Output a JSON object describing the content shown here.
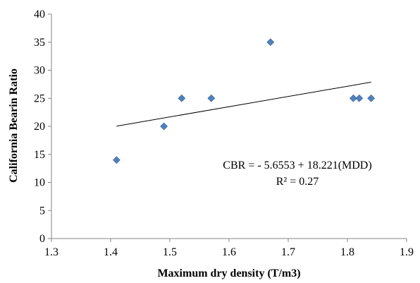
{
  "chart_data": {
    "type": "scatter",
    "title": "",
    "xlabel": "Maximum dry density (T/m3)",
    "ylabel": "California Bearin Ratio",
    "xlim": [
      1.3,
      1.9
    ],
    "ylim": [
      0,
      40
    ],
    "x_ticks": [
      1.3,
      1.4,
      1.5,
      1.6,
      1.7,
      1.8,
      1.9
    ],
    "y_ticks": [
      0,
      5,
      10,
      15,
      20,
      25,
      30,
      35,
      40
    ],
    "x_tick_labels": [
      "1.3",
      "1.4",
      "1.5",
      "1.6",
      "1.7",
      "1.8",
      "1.9"
    ],
    "y_tick_labels": [
      "0",
      "5",
      "10",
      "15",
      "20",
      "25",
      "30",
      "35",
      "40"
    ],
    "grid": false,
    "legend": "none",
    "marker": "diamond",
    "marker_color": "#4f81bd",
    "series": [
      {
        "x": [
          1.41,
          1.49,
          1.52,
          1.57,
          1.67,
          1.81,
          1.82,
          1.84
        ],
        "y": [
          14,
          20,
          25,
          25,
          35,
          25,
          25,
          25
        ]
      }
    ],
    "trendline": {
      "type": "linear",
      "x_range": [
        1.41,
        1.84
      ],
      "intercept": -5.6553,
      "slope": 18.221,
      "color": "#000000"
    },
    "annotations": [
      "CBR = - 5.6553 + 18.221(MDD)",
      "R² = 0.27"
    ]
  }
}
